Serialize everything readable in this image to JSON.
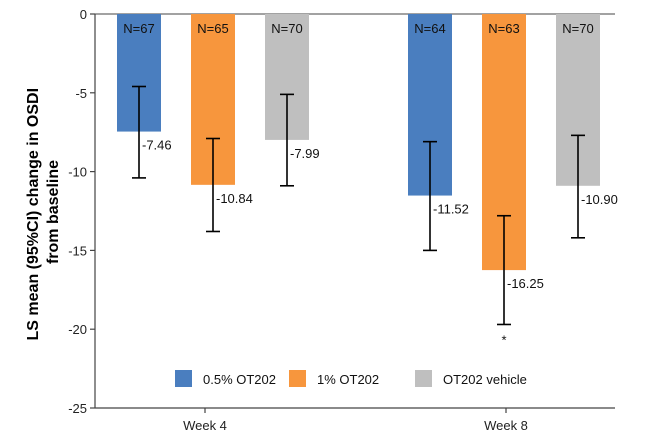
{
  "chart_data": {
    "type": "bar",
    "title": "",
    "xlabel": "",
    "ylabel": "LS mean (95%CI) change in OSDI from baseline",
    "ylabel_lines": [
      "LS mean (95%CI) change in OSDI",
      "from baseline"
    ],
    "ylim": [
      -25,
      0
    ],
    "yticks": [
      0,
      -5,
      -10,
      -15,
      -20,
      -25
    ],
    "grid": false,
    "legend_position": "bottom-center",
    "categories": [
      "Week 4",
      "Week 8"
    ],
    "series": [
      {
        "name": "0.5% OT202",
        "color": "#4a7ebf",
        "values": [
          -7.46,
          -11.52
        ],
        "value_labels": [
          "-7.46",
          "-11.52"
        ],
        "ci_low": [
          -10.4,
          -15.0
        ],
        "ci_high": [
          -4.6,
          -8.1
        ],
        "n_labels": [
          "N=67",
          "N=64"
        ],
        "sig_marks": [
          "",
          ""
        ]
      },
      {
        "name": "1% OT202",
        "color": "#f7963d",
        "values": [
          -10.84,
          -16.25
        ],
        "value_labels": [
          "-10.84",
          "-16.25"
        ],
        "ci_low": [
          -13.8,
          -19.7
        ],
        "ci_high": [
          -7.9,
          -12.8
        ],
        "n_labels": [
          "N=65",
          "N=63"
        ],
        "sig_marks": [
          "",
          "*"
        ]
      },
      {
        "name": "OT202 vehicle",
        "color": "#bfbfbf",
        "values": [
          -7.99,
          -10.9
        ],
        "value_labels": [
          "-7.99",
          "-10.90"
        ],
        "ci_low": [
          -10.9,
          -14.2
        ],
        "ci_high": [
          -5.1,
          -7.7
        ],
        "n_labels": [
          "N=70",
          "N=70"
        ],
        "sig_marks": [
          "",
          ""
        ]
      }
    ]
  }
}
